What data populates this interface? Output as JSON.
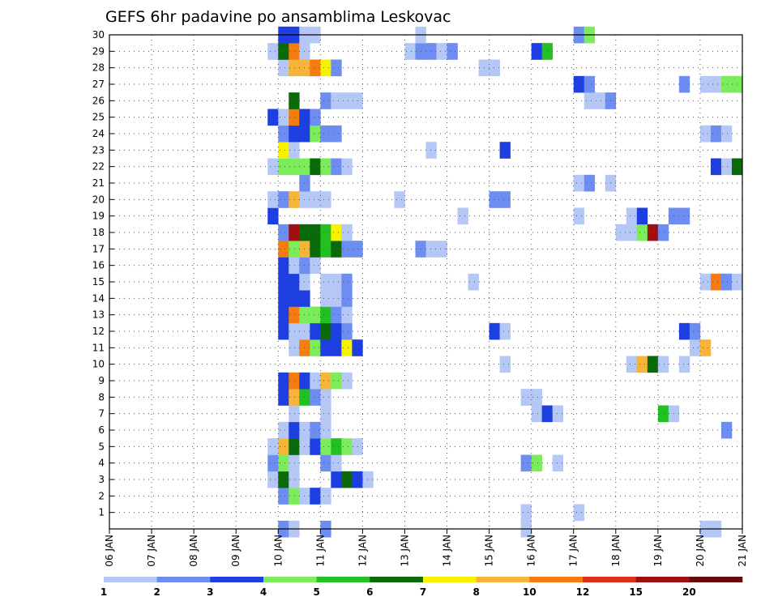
{
  "chart_data": {
    "type": "heatmap",
    "title": "GEFS 6hr padavine po ansamblima Leskovac",
    "y_members": [
      "1",
      "2",
      "3",
      "4",
      "5",
      "6",
      "7",
      "8",
      "9",
      "10",
      "11",
      "12",
      "13",
      "14",
      "15",
      "16",
      "17",
      "18",
      "19",
      "20",
      "21",
      "22",
      "23",
      "24",
      "25",
      "26",
      "27",
      "28",
      "29",
      "30"
    ],
    "x_ticks": [
      "06 JAN",
      "07 JAN",
      "08 JAN",
      "09 JAN",
      "10 JAN",
      "11 JAN",
      "12 JAN",
      "13 JAN",
      "14 JAN",
      "15 JAN",
      "16 JAN",
      "17 JAN",
      "18 JAN",
      "19 JAN",
      "20 JAN",
      "21 JAN"
    ],
    "x_range_days": [
      6,
      21
    ],
    "y_range": [
      0,
      30
    ],
    "grid": "dotted",
    "colorbar": {
      "placement": "bottom",
      "levels": [
        "1",
        "2",
        "3",
        "4",
        "5",
        "6",
        "7",
        "8",
        "10",
        "12",
        "15",
        "20"
      ],
      "colors": [
        "#b4c7f5",
        "#6d8ef0",
        "#1e3fe0",
        "#7cec5c",
        "#22c022",
        "#0a6a0a",
        "#f6f200",
        "#f7b43a",
        "#f57c10",
        "#e0301a",
        "#a01010",
        "#6a0a0a"
      ]
    },
    "cells": [
      {
        "m": 0,
        "d": 10.0,
        "c": 2
      },
      {
        "m": 0,
        "d": 10.25,
        "c": 1
      },
      {
        "m": 0,
        "d": 11.0,
        "c": 2
      },
      {
        "m": 0,
        "d": 15.75,
        "c": 1
      },
      {
        "m": 0,
        "d": 20.0,
        "c": 1
      },
      {
        "m": 0,
        "d": 20.25,
        "c": 1
      },
      {
        "m": 1,
        "d": 17.0,
        "c": 1
      },
      {
        "m": 1,
        "d": 15.75,
        "c": 1
      },
      {
        "m": 2,
        "d": 10.0,
        "c": 2
      },
      {
        "m": 2,
        "d": 10.25,
        "c": 4
      },
      {
        "m": 2,
        "d": 10.5,
        "c": 1
      },
      {
        "m": 2,
        "d": 10.75,
        "c": 3
      },
      {
        "m": 2,
        "d": 11.0,
        "c": 1
      },
      {
        "m": 3,
        "d": 9.75,
        "c": 1
      },
      {
        "m": 3,
        "d": 10.0,
        "c": 6
      },
      {
        "m": 3,
        "d": 10.25,
        "c": 1
      },
      {
        "m": 3,
        "d": 11.25,
        "c": 3
      },
      {
        "m": 3,
        "d": 11.5,
        "c": 6
      },
      {
        "m": 3,
        "d": 11.75,
        "c": 3
      },
      {
        "m": 3,
        "d": 12.0,
        "c": 1
      },
      {
        "m": 4,
        "d": 9.75,
        "c": 2
      },
      {
        "m": 4,
        "d": 10.0,
        "c": 4
      },
      {
        "m": 4,
        "d": 10.25,
        "c": 1
      },
      {
        "m": 4,
        "d": 11.0,
        "c": 2
      },
      {
        "m": 4,
        "d": 11.25,
        "c": 1
      },
      {
        "m": 4,
        "d": 15.75,
        "c": 2
      },
      {
        "m": 4,
        "d": 16.0,
        "c": 4
      },
      {
        "m": 4,
        "d": 16.5,
        "c": 1
      },
      {
        "m": 5,
        "d": 9.75,
        "c": 1
      },
      {
        "m": 5,
        "d": 10.0,
        "c": 8
      },
      {
        "m": 5,
        "d": 10.25,
        "c": 6
      },
      {
        "m": 5,
        "d": 10.5,
        "c": 1
      },
      {
        "m": 5,
        "d": 10.75,
        "c": 3
      },
      {
        "m": 5,
        "d": 11.0,
        "c": 4
      },
      {
        "m": 5,
        "d": 11.25,
        "c": 5
      },
      {
        "m": 5,
        "d": 11.5,
        "c": 4
      },
      {
        "m": 5,
        "d": 11.75,
        "c": 1
      },
      {
        "m": 6,
        "d": 10.0,
        "c": 1
      },
      {
        "m": 6,
        "d": 10.25,
        "c": 3
      },
      {
        "m": 6,
        "d": 10.5,
        "c": 1
      },
      {
        "m": 6,
        "d": 10.75,
        "c": 2
      },
      {
        "m": 6,
        "d": 11.0,
        "c": 1
      },
      {
        "m": 6,
        "d": 20.5,
        "c": 2
      },
      {
        "m": 7,
        "d": 10.25,
        "c": 1
      },
      {
        "m": 7,
        "d": 11.0,
        "c": 1
      },
      {
        "m": 7,
        "d": 16.0,
        "c": 1
      },
      {
        "m": 7,
        "d": 16.25,
        "c": 3
      },
      {
        "m": 7,
        "d": 16.5,
        "c": 1
      },
      {
        "m": 7,
        "d": 19.0,
        "c": 5
      },
      {
        "m": 7,
        "d": 19.25,
        "c": 1
      },
      {
        "m": 8,
        "d": 10.0,
        "c": 3
      },
      {
        "m": 8,
        "d": 10.25,
        "c": 8
      },
      {
        "m": 8,
        "d": 10.5,
        "c": 5
      },
      {
        "m": 8,
        "d": 10.75,
        "c": 2
      },
      {
        "m": 8,
        "d": 11.0,
        "c": 1
      },
      {
        "m": 8,
        "d": 15.75,
        "c": 1
      },
      {
        "m": 8,
        "d": 16.0,
        "c": 1
      },
      {
        "m": 9,
        "d": 10.0,
        "c": 3
      },
      {
        "m": 9,
        "d": 10.25,
        "c": 9
      },
      {
        "m": 9,
        "d": 10.5,
        "c": 3
      },
      {
        "m": 9,
        "d": 10.75,
        "c": 1
      },
      {
        "m": 9,
        "d": 11.0,
        "c": 8
      },
      {
        "m": 9,
        "d": 11.25,
        "c": 4
      },
      {
        "m": 9,
        "d": 11.5,
        "c": 1
      },
      {
        "m": 10,
        "d": 15.25,
        "c": 1
      },
      {
        "m": 10,
        "d": 18.25,
        "c": 1
      },
      {
        "m": 10,
        "d": 18.5,
        "c": 8
      },
      {
        "m": 10,
        "d": 18.75,
        "c": 6
      },
      {
        "m": 10,
        "d": 19.0,
        "c": 1
      },
      {
        "m": 10,
        "d": 19.5,
        "c": 1
      },
      {
        "m": 11,
        "d": 10.25,
        "c": 1
      },
      {
        "m": 11,
        "d": 10.5,
        "c": 9
      },
      {
        "m": 11,
        "d": 10.75,
        "c": 4
      },
      {
        "m": 11,
        "d": 11.0,
        "c": 3
      },
      {
        "m": 11,
        "d": 11.25,
        "c": 3
      },
      {
        "m": 11,
        "d": 11.5,
        "c": 7
      },
      {
        "m": 11,
        "d": 11.75,
        "c": 3
      },
      {
        "m": 11,
        "d": 19.75,
        "c": 1
      },
      {
        "m": 11,
        "d": 20.0,
        "c": 8
      },
      {
        "m": 12,
        "d": 10.0,
        "c": 3
      },
      {
        "m": 12,
        "d": 10.25,
        "c": 1
      },
      {
        "m": 12,
        "d": 10.5,
        "c": 1
      },
      {
        "m": 12,
        "d": 10.75,
        "c": 3
      },
      {
        "m": 12,
        "d": 11.0,
        "c": 6
      },
      {
        "m": 12,
        "d": 11.25,
        "c": 3
      },
      {
        "m": 12,
        "d": 11.5,
        "c": 2
      },
      {
        "m": 12,
        "d": 15.0,
        "c": 3
      },
      {
        "m": 12,
        "d": 15.25,
        "c": 1
      },
      {
        "m": 12,
        "d": 19.5,
        "c": 3
      },
      {
        "m": 12,
        "d": 19.75,
        "c": 2
      },
      {
        "m": 13,
        "d": 10.0,
        "c": 3
      },
      {
        "m": 13,
        "d": 10.25,
        "c": 9
      },
      {
        "m": 13,
        "d": 10.5,
        "c": 4
      },
      {
        "m": 13,
        "d": 10.75,
        "c": 4
      },
      {
        "m": 13,
        "d": 11.0,
        "c": 5
      },
      {
        "m": 13,
        "d": 11.25,
        "c": 2
      },
      {
        "m": 13,
        "d": 11.5,
        "c": 1
      },
      {
        "m": 14,
        "d": 10.0,
        "c": 3
      },
      {
        "m": 14,
        "d": 10.25,
        "c": 3
      },
      {
        "m": 14,
        "d": 10.5,
        "c": 3
      },
      {
        "m": 14,
        "d": 11.0,
        "c": 1
      },
      {
        "m": 14,
        "d": 11.25,
        "c": 1
      },
      {
        "m": 14,
        "d": 11.5,
        "c": 2
      },
      {
        "m": 15,
        "d": 10.0,
        "c": 3
      },
      {
        "m": 15,
        "d": 10.25,
        "c": 3
      },
      {
        "m": 15,
        "d": 10.5,
        "c": 1
      },
      {
        "m": 15,
        "d": 11.0,
        "c": 1
      },
      {
        "m": 15,
        "d": 11.25,
        "c": 1
      },
      {
        "m": 15,
        "d": 11.5,
        "c": 2
      },
      {
        "m": 15,
        "d": 14.5,
        "c": 1
      },
      {
        "m": 15,
        "d": 20.0,
        "c": 1
      },
      {
        "m": 15,
        "d": 20.25,
        "c": 9
      },
      {
        "m": 15,
        "d": 20.5,
        "c": 2
      },
      {
        "m": 15,
        "d": 20.75,
        "c": 1
      },
      {
        "m": 16,
        "d": 10.0,
        "c": 3
      },
      {
        "m": 16,
        "d": 10.25,
        "c": 1
      },
      {
        "m": 16,
        "d": 10.5,
        "c": 2
      },
      {
        "m": 16,
        "d": 10.75,
        "c": 1
      },
      {
        "m": 17,
        "d": 10.0,
        "c": 9
      },
      {
        "m": 17,
        "d": 10.25,
        "c": 4
      },
      {
        "m": 17,
        "d": 10.5,
        "c": 8
      },
      {
        "m": 17,
        "d": 10.75,
        "c": 6
      },
      {
        "m": 17,
        "d": 11.0,
        "c": 5
      },
      {
        "m": 17,
        "d": 11.25,
        "c": 6
      },
      {
        "m": 17,
        "d": 11.5,
        "c": 2
      },
      {
        "m": 17,
        "d": 11.75,
        "c": 2
      },
      {
        "m": 17,
        "d": 13.25,
        "c": 2
      },
      {
        "m": 17,
        "d": 13.5,
        "c": 1
      },
      {
        "m": 17,
        "d": 13.75,
        "c": 1
      },
      {
        "m": 18,
        "d": 10.0,
        "c": 2
      },
      {
        "m": 18,
        "d": 10.25,
        "c": 11
      },
      {
        "m": 18,
        "d": 10.5,
        "c": 6
      },
      {
        "m": 18,
        "d": 10.75,
        "c": 6
      },
      {
        "m": 18,
        "d": 11.0,
        "c": 5
      },
      {
        "m": 18,
        "d": 11.25,
        "c": 7
      },
      {
        "m": 18,
        "d": 11.5,
        "c": 1
      },
      {
        "m": 18,
        "d": 18.0,
        "c": 1
      },
      {
        "m": 18,
        "d": 18.25,
        "c": 1
      },
      {
        "m": 18,
        "d": 18.5,
        "c": 4
      },
      {
        "m": 18,
        "d": 18.75,
        "c": 11
      },
      {
        "m": 18,
        "d": 19.0,
        "c": 2
      },
      {
        "m": 19,
        "d": 9.75,
        "c": 3
      },
      {
        "m": 19,
        "d": 14.25,
        "c": 1
      },
      {
        "m": 19,
        "d": 17.0,
        "c": 1
      },
      {
        "m": 19,
        "d": 18.25,
        "c": 1
      },
      {
        "m": 19,
        "d": 18.5,
        "c": 3
      },
      {
        "m": 19,
        "d": 19.25,
        "c": 2
      },
      {
        "m": 19,
        "d": 19.5,
        "c": 2
      },
      {
        "m": 20,
        "d": 9.75,
        "c": 1
      },
      {
        "m": 20,
        "d": 10.0,
        "c": 2
      },
      {
        "m": 20,
        "d": 10.25,
        "c": 8
      },
      {
        "m": 20,
        "d": 10.5,
        "c": 1
      },
      {
        "m": 20,
        "d": 10.75,
        "c": 1
      },
      {
        "m": 20,
        "d": 11.0,
        "c": 1
      },
      {
        "m": 20,
        "d": 12.75,
        "c": 1
      },
      {
        "m": 20,
        "d": 15.0,
        "c": 2
      },
      {
        "m": 20,
        "d": 15.25,
        "c": 2
      },
      {
        "m": 21,
        "d": 10.5,
        "c": 2
      },
      {
        "m": 21,
        "d": 17.0,
        "c": 1
      },
      {
        "m": 21,
        "d": 17.25,
        "c": 2
      },
      {
        "m": 21,
        "d": 17.75,
        "c": 1
      },
      {
        "m": 22,
        "d": 9.75,
        "c": 1
      },
      {
        "m": 22,
        "d": 10.0,
        "c": 4
      },
      {
        "m": 22,
        "d": 10.25,
        "c": 4
      },
      {
        "m": 22,
        "d": 10.5,
        "c": 4
      },
      {
        "m": 22,
        "d": 10.75,
        "c": 6
      },
      {
        "m": 22,
        "d": 11.0,
        "c": 4
      },
      {
        "m": 22,
        "d": 11.25,
        "c": 2
      },
      {
        "m": 22,
        "d": 11.5,
        "c": 1
      },
      {
        "m": 22,
        "d": 20.25,
        "c": 3
      },
      {
        "m": 22,
        "d": 20.5,
        "c": 1
      },
      {
        "m": 22,
        "d": 20.75,
        "c": 6
      },
      {
        "m": 23,
        "d": 10.0,
        "c": 7
      },
      {
        "m": 23,
        "d": 10.25,
        "c": 1
      },
      {
        "m": 23,
        "d": 13.5,
        "c": 1
      },
      {
        "m": 23,
        "d": 15.25,
        "c": 3
      },
      {
        "m": 24,
        "d": 10.0,
        "c": 2
      },
      {
        "m": 24,
        "d": 10.25,
        "c": 3
      },
      {
        "m": 24,
        "d": 10.5,
        "c": 3
      },
      {
        "m": 24,
        "d": 10.75,
        "c": 4
      },
      {
        "m": 24,
        "d": 11.0,
        "c": 2
      },
      {
        "m": 24,
        "d": 11.25,
        "c": 2
      },
      {
        "m": 24,
        "d": 20.0,
        "c": 1
      },
      {
        "m": 24,
        "d": 20.25,
        "c": 2
      },
      {
        "m": 24,
        "d": 20.5,
        "c": 1
      },
      {
        "m": 25,
        "d": 9.75,
        "c": 3
      },
      {
        "m": 25,
        "d": 10.0,
        "c": 1
      },
      {
        "m": 25,
        "d": 10.25,
        "c": 9
      },
      {
        "m": 25,
        "d": 10.5,
        "c": 3
      },
      {
        "m": 25,
        "d": 10.75,
        "c": 2
      },
      {
        "m": 26,
        "d": 10.25,
        "c": 6
      },
      {
        "m": 26,
        "d": 11.0,
        "c": 2
      },
      {
        "m": 26,
        "d": 11.25,
        "c": 1
      },
      {
        "m": 26,
        "d": 11.5,
        "c": 1
      },
      {
        "m": 26,
        "d": 11.75,
        "c": 1
      },
      {
        "m": 26,
        "d": 17.25,
        "c": 1
      },
      {
        "m": 26,
        "d": 17.5,
        "c": 1
      },
      {
        "m": 26,
        "d": 17.75,
        "c": 2
      },
      {
        "m": 27,
        "d": 17.0,
        "c": 3
      },
      {
        "m": 27,
        "d": 17.25,
        "c": 2
      },
      {
        "m": 27,
        "d": 19.5,
        "c": 2
      },
      {
        "m": 27,
        "d": 20.0,
        "c": 1
      },
      {
        "m": 27,
        "d": 20.25,
        "c": 1
      },
      {
        "m": 27,
        "d": 20.5,
        "c": 4
      },
      {
        "m": 27,
        "d": 20.75,
        "c": 4
      },
      {
        "m": 28,
        "d": 10.0,
        "c": 1
      },
      {
        "m": 28,
        "d": 10.25,
        "c": 8
      },
      {
        "m": 28,
        "d": 10.5,
        "c": 8
      },
      {
        "m": 28,
        "d": 10.75,
        "c": 9
      },
      {
        "m": 28,
        "d": 11.0,
        "c": 7
      },
      {
        "m": 28,
        "d": 11.25,
        "c": 2
      },
      {
        "m": 28,
        "d": 14.75,
        "c": 1
      },
      {
        "m": 28,
        "d": 15.0,
        "c": 1
      },
      {
        "m": 29,
        "d": 9.75,
        "c": 1
      },
      {
        "m": 29,
        "d": 10.0,
        "c": 6
      },
      {
        "m": 29,
        "d": 10.25,
        "c": 9
      },
      {
        "m": 29,
        "d": 10.5,
        "c": 1
      },
      {
        "m": 29,
        "d": 13.0,
        "c": 1
      },
      {
        "m": 29,
        "d": 13.25,
        "c": 2
      },
      {
        "m": 29,
        "d": 13.5,
        "c": 2
      },
      {
        "m": 29,
        "d": 13.75,
        "c": 1
      },
      {
        "m": 29,
        "d": 14.0,
        "c": 2
      },
      {
        "m": 29,
        "d": 16.0,
        "c": 3
      },
      {
        "m": 29,
        "d": 16.25,
        "c": 5
      },
      {
        "m": 30,
        "d": 10.0,
        "c": 3
      },
      {
        "m": 30,
        "d": 10.25,
        "c": 3
      },
      {
        "m": 30,
        "d": 10.5,
        "c": 1
      },
      {
        "m": 30,
        "d": 10.75,
        "c": 1
      },
      {
        "m": 30,
        "d": 13.25,
        "c": 1
      },
      {
        "m": 30,
        "d": 17.0,
        "c": 2
      },
      {
        "m": 30,
        "d": 17.25,
        "c": 4
      }
    ]
  }
}
